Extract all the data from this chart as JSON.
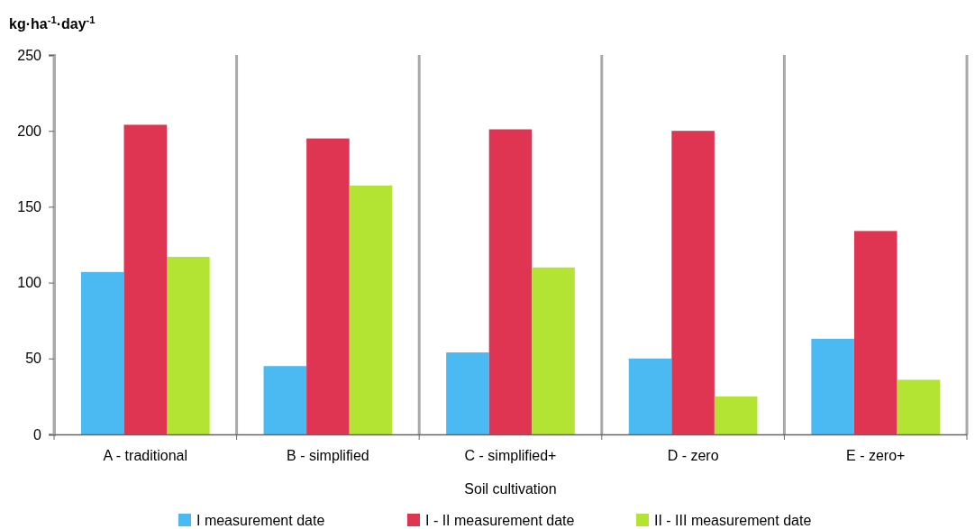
{
  "chart_data": {
    "type": "bar",
    "xlabel": "Soil cultivation",
    "ylabel": "kg·ha$^{-1}$·day$^{-1}$",
    "categories": [
      "A - traditional",
      "B - simplified",
      "C - simplified+",
      "D - zero",
      "E - zero+"
    ],
    "series": [
      {
        "name": "I measurement date",
        "color": "#4bb9f2",
        "values": [
          107,
          45,
          54,
          50,
          63
        ]
      },
      {
        "name": "I - II measurement date",
        "color": "#e03552",
        "values": [
          204,
          195,
          201,
          200,
          134
        ]
      },
      {
        "name": "II - III measurement date",
        "color": "#b3e433",
        "values": [
          117,
          164,
          110,
          25,
          36
        ]
      }
    ],
    "ylim": [
      0,
      250
    ],
    "yticks": [
      0,
      50,
      100,
      150,
      200,
      250
    ],
    "grid": "x",
    "legend": "bottom"
  }
}
